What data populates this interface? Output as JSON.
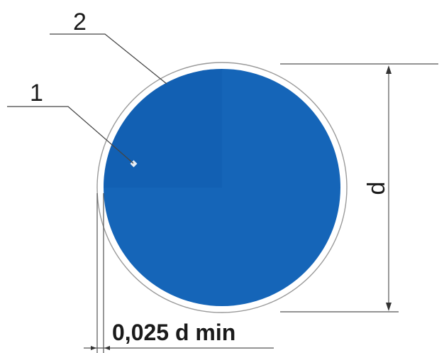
{
  "labels": {
    "callout_1": "1",
    "callout_2": "2",
    "diameter": "d",
    "border_width": "0,025 d min"
  },
  "colors": {
    "disc_fill": "#1565b8",
    "disc_shade": "#0f5aa8",
    "border_ring": "#ffffff",
    "line": "#333333",
    "background": "#ffffff"
  }
}
